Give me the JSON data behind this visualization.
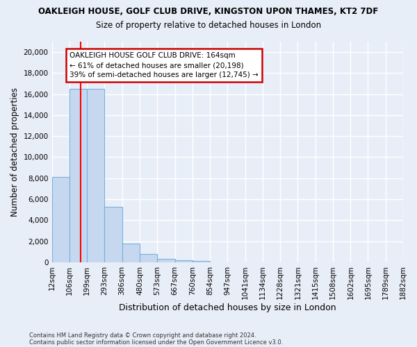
{
  "title": "OAKLEIGH HOUSE, GOLF CLUB DRIVE, KINGSTON UPON THAMES, KT2 7DF",
  "subtitle": "Size of property relative to detached houses in London",
  "xlabel": "Distribution of detached houses by size in London",
  "ylabel": "Number of detached properties",
  "bar_heights": [
    8100,
    16500,
    16500,
    5300,
    1800,
    750,
    350,
    200,
    150,
    0,
    0,
    0,
    0,
    0,
    0,
    0,
    0,
    0,
    0,
    0
  ],
  "bar_edges": [
    12,
    106,
    199,
    293,
    386,
    480,
    573,
    667,
    760,
    854,
    947,
    1041,
    1134,
    1228,
    1321,
    1415,
    1508,
    1602,
    1695,
    1789,
    1882
  ],
  "tick_labels": [
    "12sqm",
    "106sqm",
    "199sqm",
    "293sqm",
    "386sqm",
    "480sqm",
    "573sqm",
    "667sqm",
    "760sqm",
    "854sqm",
    "947sqm",
    "1041sqm",
    "1134sqm",
    "1228sqm",
    "1321sqm",
    "1415sqm",
    "1508sqm",
    "1602sqm",
    "1695sqm",
    "1789sqm",
    "1882sqm"
  ],
  "bar_color": "#c5d8f0",
  "bar_edgecolor": "#7aafdb",
  "red_line_x": 164,
  "annotation_text": "OAKLEIGH HOUSE GOLF CLUB DRIVE: 164sqm\n← 61% of detached houses are smaller (20,198)\n39% of semi-detached houses are larger (12,745) →",
  "annotation_box_color": "#ffffff",
  "annotation_box_edgecolor": "#cc0000",
  "ylim": [
    0,
    21000
  ],
  "yticks": [
    0,
    2000,
    4000,
    6000,
    8000,
    10000,
    12000,
    14000,
    16000,
    18000,
    20000
  ],
  "footer1": "Contains HM Land Registry data © Crown copyright and database right 2024.",
  "footer2": "Contains public sector information licensed under the Open Government Licence v3.0.",
  "bg_color": "#e8eef8",
  "grid_color": "#ffffff"
}
